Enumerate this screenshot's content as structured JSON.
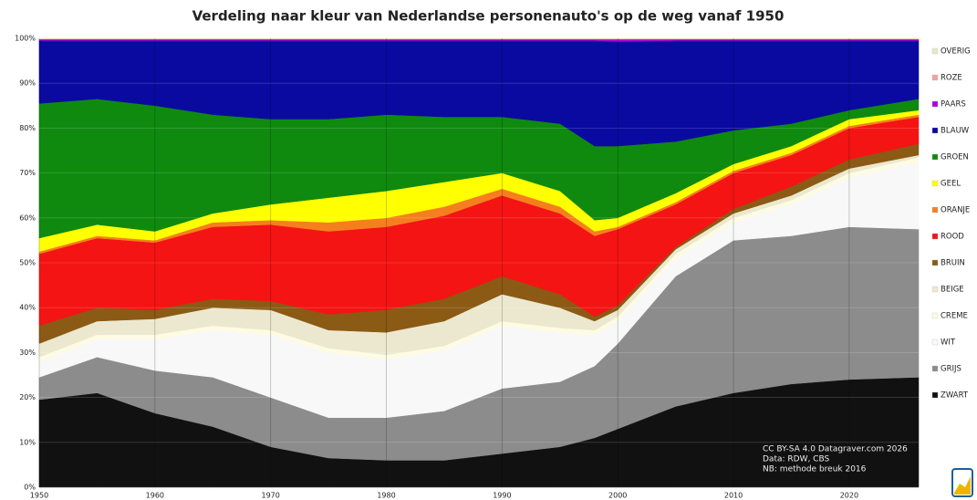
{
  "chart_data": {
    "type": "stacked-area",
    "title": "Verdeling naar kleur van Nederlandse personenauto's op de weg vanaf 1950",
    "x": [
      1950,
      1955,
      1960,
      1965,
      1970,
      1975,
      1980,
      1985,
      1990,
      1995,
      1998,
      2000,
      2005,
      2010,
      2015,
      2020,
      2026
    ],
    "xlim": [
      1950,
      2026
    ],
    "xticks": [
      1950,
      1960,
      1970,
      1980,
      1990,
      2000,
      2010,
      2020
    ],
    "ylim": [
      0,
      100
    ],
    "yticks": [
      {
        "value": 0,
        "label": "0%"
      },
      {
        "value": 10,
        "label": "10%"
      },
      {
        "value": 20,
        "label": "20%"
      },
      {
        "value": 30,
        "label": "30%"
      },
      {
        "value": 40,
        "label": "40%"
      },
      {
        "value": 50,
        "label": "50%"
      },
      {
        "value": 60,
        "label": "60%"
      },
      {
        "value": 70,
        "label": "70%"
      },
      {
        "value": 80,
        "label": "80%"
      },
      {
        "value": 90,
        "label": "90%"
      },
      {
        "value": 100,
        "label": "100%"
      }
    ],
    "grid": true,
    "legend": "right",
    "series": [
      {
        "name": "ZWART",
        "color": "#111111",
        "values": [
          19.5,
          21,
          16.5,
          13.5,
          9,
          6.5,
          6,
          6,
          7.5,
          9,
          11,
          13,
          18,
          21,
          23,
          24,
          24.5
        ]
      },
      {
        "name": "GRIJS",
        "color": "#8c8c8c",
        "values": [
          5,
          8,
          9.5,
          11,
          11,
          9,
          9.5,
          11,
          14.5,
          14.5,
          16,
          19,
          29,
          34,
          33,
          34,
          33
        ]
      },
      {
        "name": "WIT",
        "color": "#f8f8f8",
        "values": [
          3.5,
          4,
          7,
          10.5,
          14,
          14.5,
          13,
          13.5,
          14,
          11,
          7,
          5,
          4,
          4,
          7,
          11,
          15
        ]
      },
      {
        "name": "CREME",
        "color": "#fdfbe2",
        "values": [
          1,
          1,
          1,
          1,
          1,
          1,
          1,
          1,
          1,
          1,
          1,
          1,
          1,
          1,
          1,
          1,
          1
        ]
      },
      {
        "name": "BEIGE",
        "color": "#ece8d0",
        "values": [
          3,
          3,
          3.5,
          4,
          4.5,
          4,
          5,
          5.5,
          6,
          4.5,
          2,
          1.5,
          1,
          1,
          1,
          1,
          0.5
        ]
      },
      {
        "name": "BRUIN",
        "color": "#8b5a14",
        "values": [
          4,
          3,
          2,
          2,
          2,
          3.5,
          5,
          5,
          4,
          3,
          1,
          1,
          0.5,
          1,
          2,
          2,
          2.5
        ]
      },
      {
        "name": "ROOD",
        "color": "#f41414",
        "values": [
          16,
          15.5,
          15,
          16,
          17,
          18.5,
          18.5,
          18.5,
          18,
          18,
          18,
          17,
          9.5,
          8,
          7,
          7,
          6
        ]
      },
      {
        "name": "ORANJE",
        "color": "#f57f1e",
        "values": [
          0.5,
          0.5,
          0.5,
          1,
          1,
          2,
          2,
          2,
          1.5,
          1.5,
          1,
          0.5,
          0.5,
          0.5,
          0.5,
          0.5,
          0.5
        ]
      },
      {
        "name": "GEEL",
        "color": "#ffff00",
        "values": [
          3,
          2.5,
          2,
          2,
          3.5,
          5.5,
          6,
          5.5,
          3.5,
          3.5,
          2.5,
          2,
          2,
          1.5,
          1.5,
          1.5,
          1
        ]
      },
      {
        "name": "GROEN",
        "color": "#0f8a0f",
        "values": [
          30,
          28,
          28,
          22,
          19,
          17.5,
          17,
          14.5,
          12.5,
          15,
          16.5,
          16,
          11.5,
          7.5,
          5,
          2,
          2.5
        ]
      },
      {
        "name": "BLAUW",
        "color": "#0a0aa0",
        "values": [
          14,
          13,
          14.5,
          16.5,
          17.5,
          17.5,
          16.5,
          17,
          17,
          18.5,
          23.5,
          23.3,
          22.5,
          20,
          18.5,
          15.5,
          13
        ]
      },
      {
        "name": "PAARS",
        "color": "#b000e0",
        "values": [
          0.3,
          0.3,
          0.3,
          0.3,
          0.3,
          0.3,
          0.3,
          0.3,
          0.3,
          0.3,
          0.3,
          0.5,
          0.3,
          0.3,
          0.3,
          0.3,
          0.3
        ]
      },
      {
        "name": "ROZE",
        "color": "#f4a0a0",
        "values": [
          0.1,
          0.1,
          0.1,
          0.1,
          0.1,
          0.1,
          0.1,
          0.1,
          0.1,
          0.1,
          0.1,
          0.1,
          0.1,
          0.1,
          0.1,
          0.1,
          0.1
        ]
      },
      {
        "name": "OVERIG",
        "color": "#e6e6c8",
        "values": [
          0.1,
          0.1,
          0.1,
          0.1,
          0.1,
          0.1,
          0.1,
          0.1,
          0.1,
          0.1,
          0.1,
          0.1,
          0.1,
          0.1,
          0.1,
          0.1,
          0.1
        ]
      }
    ],
    "annotations": [
      "CC BY-SA 4.0 Datagraver.com 2026",
      "Data: RDW, CBS",
      "NB: methode breuk 2016"
    ]
  }
}
